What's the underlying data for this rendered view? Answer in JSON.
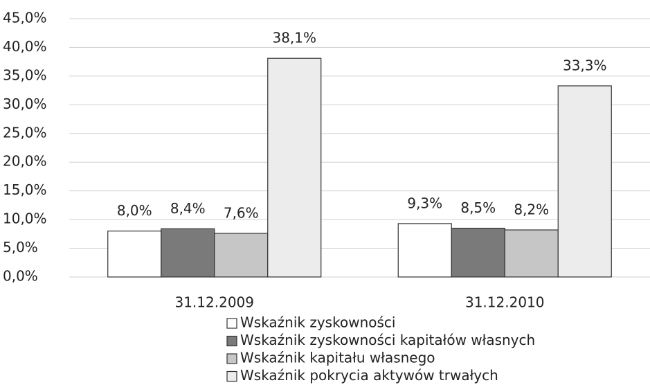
{
  "chart_data": {
    "type": "bar",
    "categories": [
      "31.12.2009",
      "31.12.2010"
    ],
    "series": [
      {
        "name": "Wskaźnik zyskowności",
        "color": "#ffffff",
        "values": [
          8.0,
          9.3
        ],
        "value_labels": [
          "8,0%",
          "9,3%"
        ]
      },
      {
        "name": "Wskaźnik zyskowności kapitałów własnych",
        "color": "#7a7a7a",
        "values": [
          8.4,
          8.5
        ],
        "value_labels": [
          "8,4%",
          "8,5%"
        ]
      },
      {
        "name": "Wskaźnik kapitału własnego",
        "color": "#c6c6c6",
        "values": [
          7.6,
          8.2
        ],
        "value_labels": [
          "7,6%",
          "8,2%"
        ]
      },
      {
        "name": "Wskaźnik pokrycia aktywów trwałych",
        "color": "#ececec",
        "values": [
          38.1,
          33.3
        ],
        "value_labels": [
          "38,1%",
          "33,3%"
        ]
      }
    ],
    "ylim": [
      0,
      45
    ],
    "yticks": [
      {
        "value": 0,
        "label": "0,0%"
      },
      {
        "value": 5,
        "label": "5,0%"
      },
      {
        "value": 10,
        "label": "10,0%"
      },
      {
        "value": 15,
        "label": "15,0%"
      },
      {
        "value": 20,
        "label": "20,0%"
      },
      {
        "value": 25,
        "label": "25,0%"
      },
      {
        "value": 30,
        "label": "30,0%"
      },
      {
        "value": 35,
        "label": "35,0%"
      },
      {
        "value": 40,
        "label": "40,0%"
      },
      {
        "value": 45,
        "label": "45,0%"
      }
    ],
    "grid": true,
    "legend": "bottom"
  }
}
